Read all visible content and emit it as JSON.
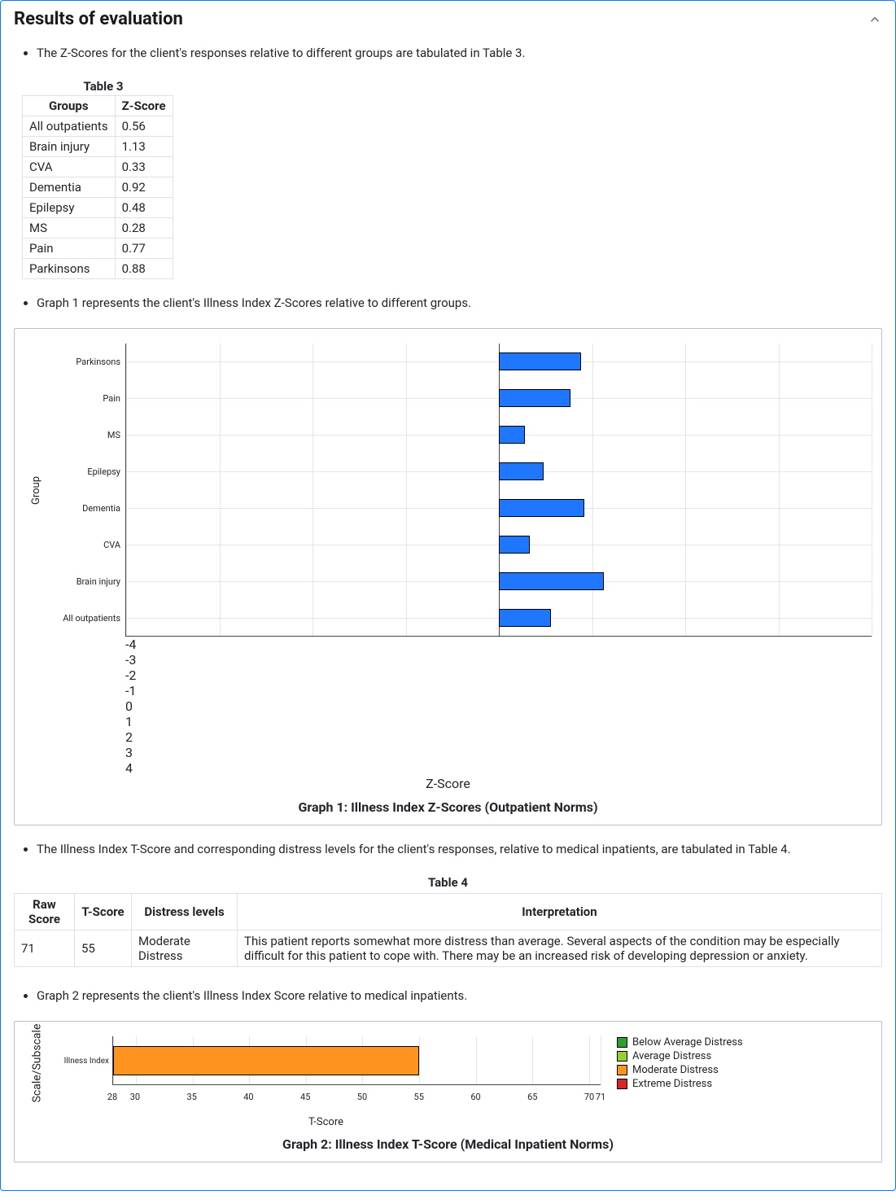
{
  "panel": {
    "title": "Results of evaluation"
  },
  "bullets": {
    "b1": "The Z-Scores for the client's responses relative to different groups are tabulated in Table 3.",
    "b2": "Graph 1 represents the client's Illness Index Z-Scores relative to different groups.",
    "b3": "The Illness Index T-Score and corresponding distress levels for the client's responses, relative to medical inpatients, are tabulated in Table 4.",
    "b4": "Graph 2 represents the client's Illness Index Score relative to medical inpatients."
  },
  "table3": {
    "caption": "Table 3",
    "col_groups": "Groups",
    "col_z": "Z-Score",
    "rows": [
      {
        "g": "All outpatients",
        "z": "0.56"
      },
      {
        "g": "Brain injury",
        "z": "1.13"
      },
      {
        "g": "CVA",
        "z": "0.33"
      },
      {
        "g": "Dementia",
        "z": "0.92"
      },
      {
        "g": "Epilepsy",
        "z": "0.48"
      },
      {
        "g": "MS",
        "z": "0.28"
      },
      {
        "g": "Pain",
        "z": "0.77"
      },
      {
        "g": "Parkinsons",
        "z": "0.88"
      }
    ]
  },
  "graph1": {
    "type": "horizontal-bar",
    "title": "Graph 1: Illness Index Z-Scores (Outpatient Norms)",
    "ylabel": "Group",
    "xlabel": "Z-Score",
    "xlim": [
      -4,
      4
    ],
    "xticks": [
      -4,
      -3,
      -2,
      -1,
      0,
      1,
      2,
      3,
      4
    ],
    "bar_color": "#1f77ff",
    "bar_border": "#000000",
    "grid_color": "#e5e5e5",
    "axis_color": "#444444",
    "background_color": "#ffffff",
    "categories_bottom_to_top": [
      "All outpatients",
      "Brain injury",
      "CVA",
      "Dementia",
      "Epilepsy",
      "MS",
      "Pain",
      "Parkinsons"
    ],
    "values_bottom_to_top": [
      0.56,
      1.13,
      0.33,
      0.92,
      0.48,
      0.28,
      0.77,
      0.88
    ],
    "label_fontsize": 11,
    "axis_title_fontsize": 13,
    "title_fontsize": 16
  },
  "table4": {
    "caption": "Table 4",
    "col_raw": "Raw Score",
    "col_t": "T-Score",
    "col_dl": "Distress levels",
    "col_interp": "Interpretation",
    "raw": "71",
    "t": "55",
    "dl": "Moderate Distress",
    "interp": "This patient reports somewhat more distress than average. Several aspects of the condition may be especially difficult for this patient to cope with. There may be an increased risk of developing depression or anxiety."
  },
  "graph2": {
    "type": "horizontal-bar",
    "title": "Graph 2: Illness Index T-Score (Medical Inpatient Norms)",
    "ylabel": "Scale/Subscale",
    "xlabel": "T-Score",
    "xlim": [
      28,
      71
    ],
    "xticks": [
      28,
      30,
      35,
      40,
      45,
      50,
      55,
      60,
      65,
      70,
      71
    ],
    "category": "Illness Index",
    "value": 55,
    "bar_color": "#ff9320",
    "bar_border": "#000000",
    "grid_color": "#e5e5e5",
    "axis_color": "#444444",
    "label_fontsize": 10,
    "legend": [
      {
        "label": "Below Average Distress",
        "color": "#2ca02c"
      },
      {
        "label": "Average Distress",
        "color": "#9acd32"
      },
      {
        "label": "Moderate Distress",
        "color": "#ff9320"
      },
      {
        "label": "Extreme Distress",
        "color": "#d62728"
      }
    ]
  }
}
